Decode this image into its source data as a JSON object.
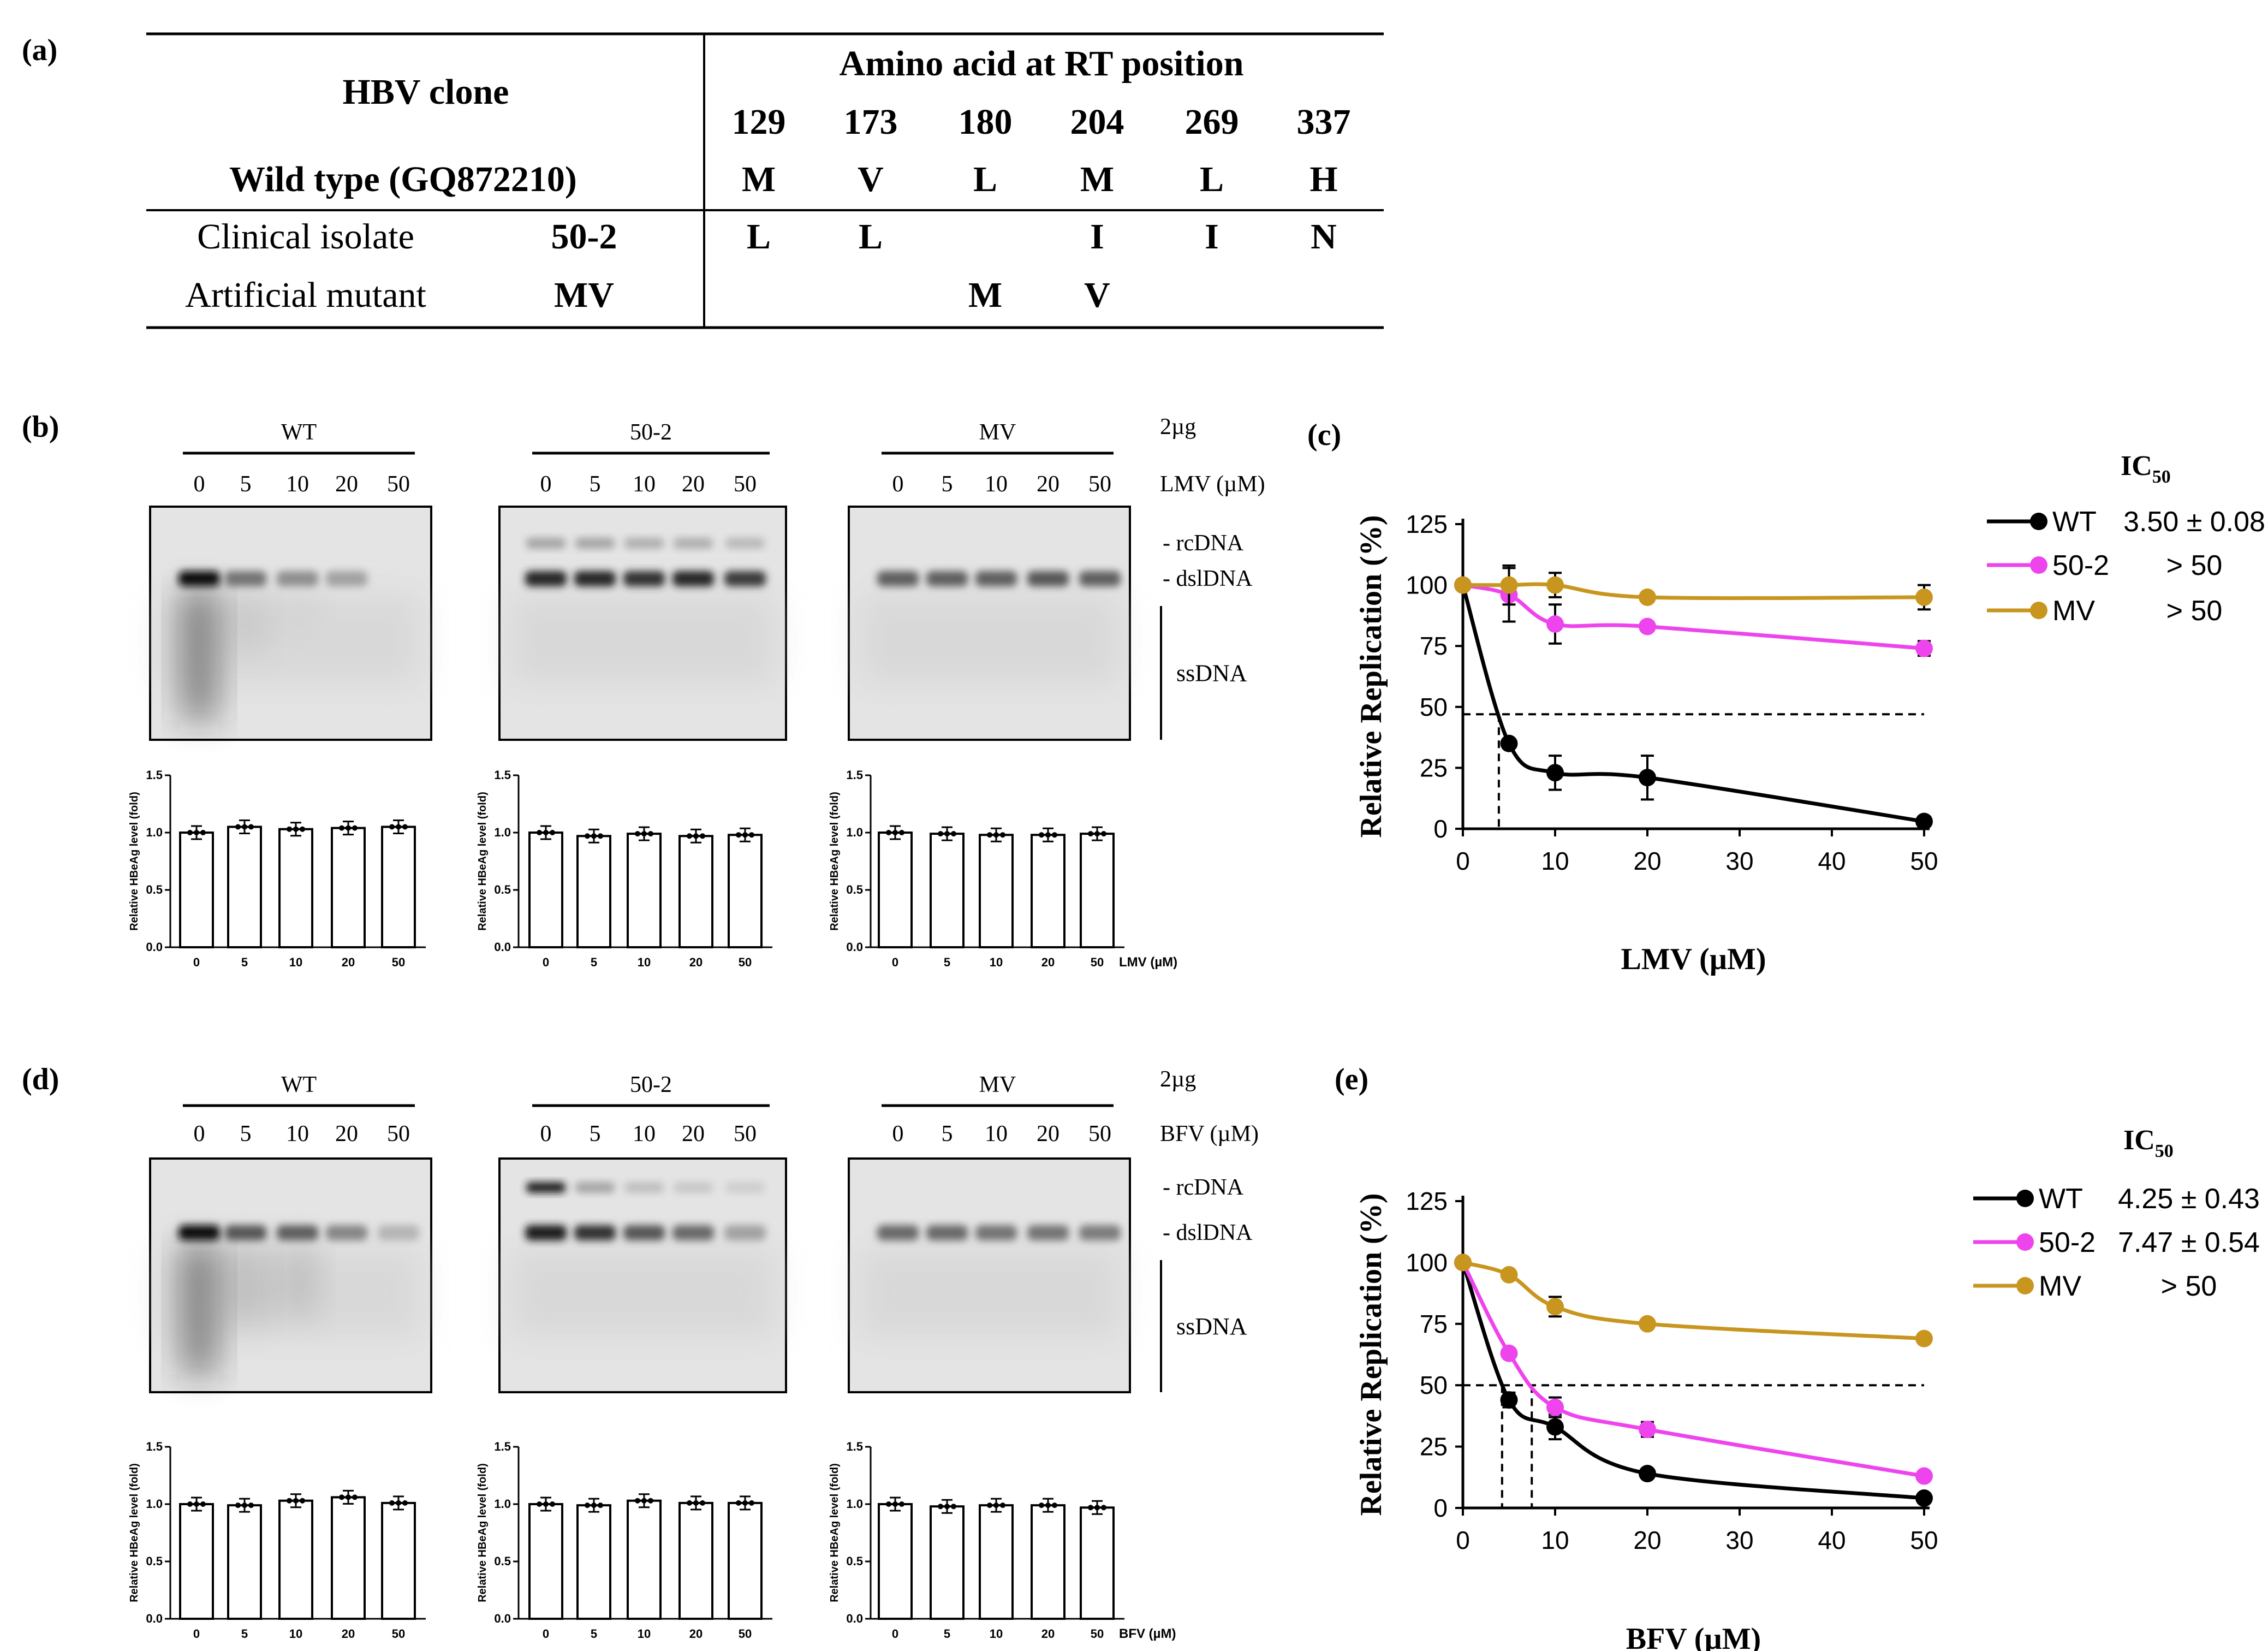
{
  "panel_labels": {
    "a": "(a)",
    "b": "(b)",
    "c": "(c)",
    "d": "(d)",
    "e": "(e)"
  },
  "table": {
    "header_clone": "HBV clone",
    "header_amino": "Amino acid at RT position",
    "positions": [
      "129",
      "173",
      "180",
      "204",
      "269",
      "337"
    ],
    "wild_type_label": "Wild type (GQ872210)",
    "wild_type_aa": [
      "M",
      "V",
      "L",
      "M",
      "L",
      "H"
    ],
    "rows": [
      {
        "type": "Clinical isolate",
        "clone": "50-2",
        "aa": [
          "L",
          "L",
          "",
          "I",
          "I",
          "N"
        ]
      },
      {
        "type": "Artificial mutant",
        "clone": "MV",
        "aa": [
          "",
          "",
          "M",
          "V",
          "",
          ""
        ]
      }
    ]
  },
  "blots": {
    "groups": [
      "WT",
      "50-2",
      "MV"
    ],
    "doses": [
      "0",
      "5",
      "10",
      "20",
      "50"
    ],
    "amount": "2µg",
    "lmv_label": "LMV (µM)",
    "bfv_label": "BFV  (µM)",
    "band_labels": {
      "rc": "- rcDNA",
      "dsl": "- dslDNA",
      "ss": "ssDNA"
    }
  },
  "small_bars": {
    "ylabel": "Relative HBeAg level (fold)",
    "yticks": [
      "0.0",
      "0.5",
      "1.0",
      "1.5"
    ],
    "xticks": [
      "0",
      "5",
      "10",
      "20",
      "50"
    ],
    "lmv_axis": "LMV (µM)",
    "bfv_axis": "BFV (µM)"
  },
  "chart_data": [
    {
      "type": "line",
      "panel": "(c)",
      "xlabel": "LMV (µM)",
      "ylabel": "Relative Replication (%)",
      "xlim": [
        0,
        50
      ],
      "ylim": [
        0,
        125
      ],
      "xticks": [
        0,
        10,
        20,
        30,
        40,
        50
      ],
      "yticks": [
        0,
        25,
        50,
        75,
        100,
        125
      ],
      "x": [
        0,
        5,
        10,
        20,
        50
      ],
      "series": [
        {
          "name": "WT",
          "color": "#000000",
          "values": [
            100,
            35,
            23,
            21,
            3
          ],
          "errors": [
            0,
            0,
            7,
            9,
            0
          ]
        },
        {
          "name": "50-2",
          "color": "#ee44ee",
          "values": [
            100,
            96,
            84,
            83,
            74
          ],
          "errors": [
            0,
            11,
            8,
            0,
            3
          ]
        },
        {
          "name": "MV",
          "color": "#c8961e",
          "values": [
            100,
            100,
            100,
            95,
            95
          ],
          "errors": [
            0,
            8,
            5,
            0,
            5
          ]
        }
      ],
      "ic50_header": "IC50",
      "ic50": [
        "3.50 ± 0.08",
        "> 50",
        "> 50"
      ],
      "reference_line": 47,
      "ic50_markers": [
        3.9
      ]
    },
    {
      "type": "line",
      "panel": "(e)",
      "xlabel": "BFV (µM)",
      "ylabel": "Relative Replication (%)",
      "xlim": [
        0,
        50
      ],
      "ylim": [
        0,
        125
      ],
      "xticks": [
        0,
        10,
        20,
        30,
        40,
        50
      ],
      "yticks": [
        0,
        25,
        50,
        75,
        100,
        125
      ],
      "x": [
        0,
        5,
        10,
        20,
        50
      ],
      "series": [
        {
          "name": "WT",
          "color": "#000000",
          "values": [
            100,
            44,
            33,
            14,
            4
          ],
          "errors": [
            0,
            3,
            5,
            0,
            0
          ]
        },
        {
          "name": "50-2",
          "color": "#ee44ee",
          "values": [
            100,
            63,
            41,
            32,
            13
          ],
          "errors": [
            0,
            0,
            4,
            3,
            0
          ]
        },
        {
          "name": "MV",
          "color": "#c8961e",
          "values": [
            100,
            95,
            82,
            75,
            69
          ],
          "errors": [
            0,
            0,
            4,
            0,
            0
          ]
        }
      ],
      "ic50_header": "IC50",
      "ic50": [
        "4.25 ± 0.43",
        "7.47 ± 0.54",
        "> 50"
      ],
      "reference_line": 50,
      "ic50_markers": [
        4.25,
        7.47
      ]
    }
  ]
}
